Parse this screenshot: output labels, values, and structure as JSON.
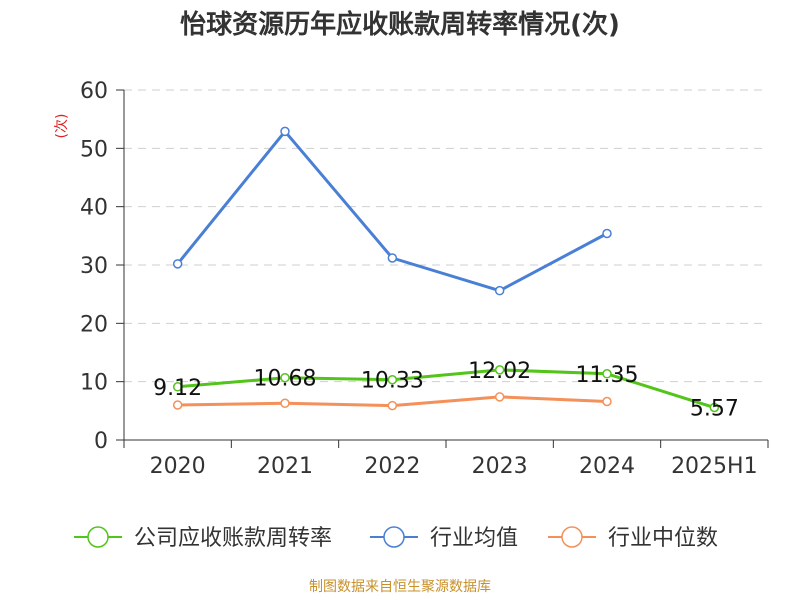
{
  "chart_data": {
    "type": "line",
    "title": "怡球资源历年应收账款周转率情况(次)",
    "unit_label": "(次)",
    "categories": [
      "2020",
      "2021",
      "2022",
      "2023",
      "2024",
      "2025H1"
    ],
    "ylim": [
      0,
      60
    ],
    "yticks": [
      0,
      10,
      20,
      30,
      40,
      50,
      60
    ],
    "grid": true,
    "legend_position": "bottom",
    "series": [
      {
        "name": "公司应收账款周转率",
        "color": "#52c41a",
        "values": [
          9.12,
          10.68,
          10.33,
          12.02,
          11.35,
          5.57
        ],
        "labels": [
          "9.12",
          "10.68",
          "10.33",
          "12.02",
          "11.35",
          "5.57"
        ]
      },
      {
        "name": "行业均值",
        "color": "#4a7fd6",
        "values": [
          30.2,
          52.9,
          31.2,
          25.6,
          35.4,
          null
        ]
      },
      {
        "name": "行业中位数",
        "color": "#f4905a",
        "values": [
          6.0,
          6.3,
          5.9,
          7.4,
          6.6,
          null
        ]
      }
    ],
    "source": "制图数据来自恒生聚源数据库"
  }
}
